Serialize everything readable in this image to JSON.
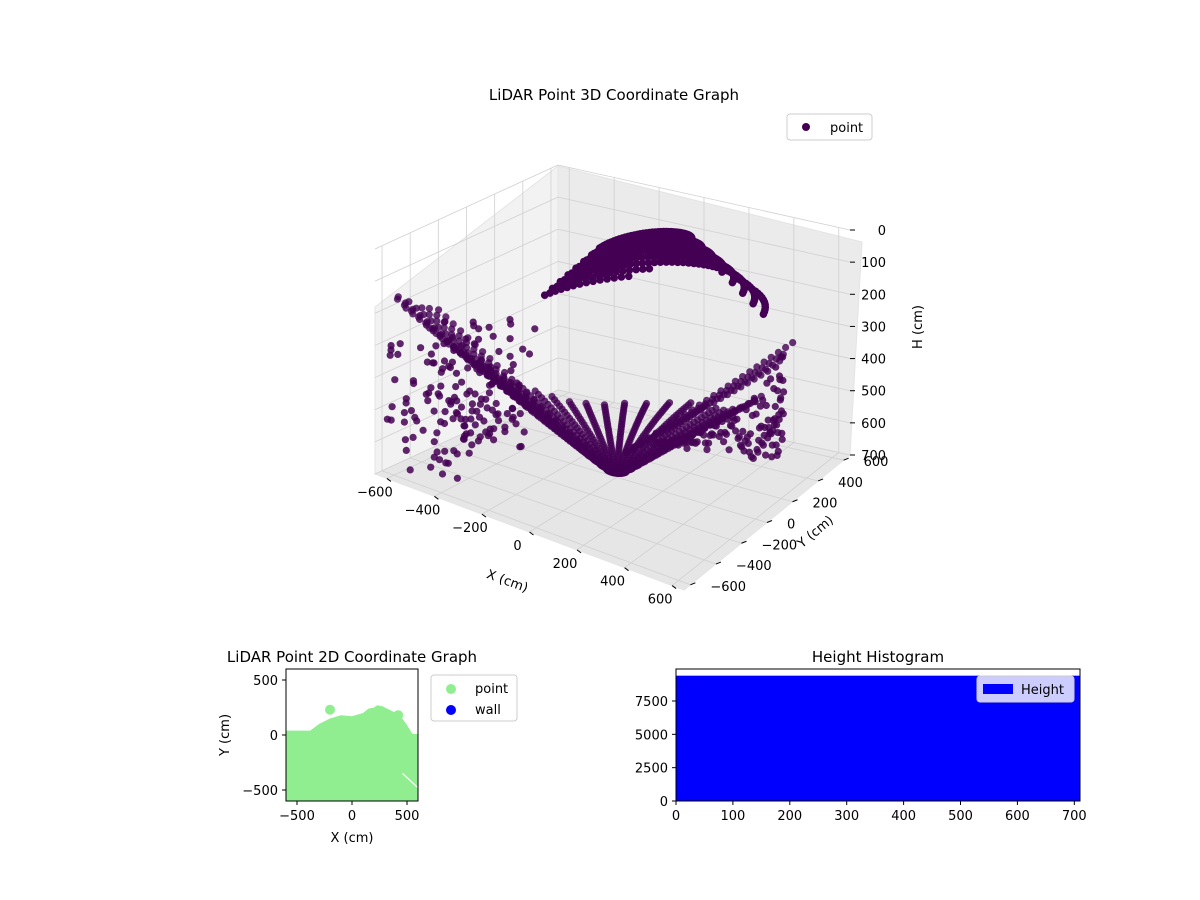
{
  "chart_data": [
    {
      "type": "scatter",
      "projection": "3d",
      "title": "LiDAR Point 3D Coordinate Graph",
      "xlabel": "X (cm)",
      "ylabel": "Y (cm)",
      "zlabel": "H (cm)",
      "xlim": [
        -650,
        650
      ],
      "ylim": [
        -650,
        650
      ],
      "zlim": [
        700,
        0
      ],
      "x_ticks": [
        -600,
        -400,
        -200,
        0,
        200,
        400,
        600
      ],
      "x_tick_labels": [
        "−600",
        "−400",
        "−200",
        "0",
        "200",
        "400",
        "600"
      ],
      "y_ticks": [
        -600,
        -400,
        -200,
        0,
        200,
        400,
        600
      ],
      "y_tick_labels": [
        "−600",
        "−400",
        "−200",
        "0",
        "200",
        "400",
        "600"
      ],
      "z_ticks": [
        0,
        100,
        200,
        300,
        400,
        500,
        600,
        700
      ],
      "z_tick_labels": [
        "0",
        "100",
        "200",
        "300",
        "400",
        "500",
        "600",
        "700"
      ],
      "grid": true,
      "legend": {
        "placement": "upper-right",
        "entries": [
          "point"
        ]
      },
      "series": [
        {
          "name": "point",
          "color": "#440154",
          "description": "dense sweep of lidar points forming curved scan bands",
          "points": [
            [
              -600,
              0,
              640
            ],
            [
              -500,
              100,
              580
            ],
            [
              -400,
              200,
              500
            ],
            [
              -300,
              260,
              430
            ],
            [
              -200,
              200,
              380
            ],
            [
              0,
              0,
              330
            ],
            [
              200,
              -200,
              300
            ],
            [
              300,
              300,
              250
            ],
            [
              400,
              200,
              200
            ],
            [
              500,
              0,
              150
            ],
            [
              600,
              -200,
              80
            ],
            [
              600,
              200,
              100
            ],
            [
              200,
              600,
              0
            ],
            [
              0,
              550,
              10
            ],
            [
              -200,
              400,
              60
            ],
            [
              -500,
              -500,
              520
            ],
            [
              0,
              -600,
              560
            ],
            [
              300,
              -550,
              600
            ],
            [
              500,
              -400,
              650
            ],
            [
              -300,
              -300,
              480
            ]
          ]
        }
      ]
    },
    {
      "type": "scatter",
      "title": "LiDAR Point 2D Coordinate Graph",
      "xlabel": "X (cm)",
      "ylabel": "Y (cm)",
      "xlim": [
        -600,
        600
      ],
      "ylim": [
        -600,
        600
      ],
      "x_ticks": [
        -500,
        0,
        500
      ],
      "x_tick_labels": [
        "−500",
        "0",
        "500"
      ],
      "y_ticks": [
        -500,
        0,
        500
      ],
      "y_tick_labels": [
        "−500",
        "0",
        "500"
      ],
      "grid": false,
      "legend": {
        "placement": "outside-right",
        "entries": [
          "point",
          "wall"
        ]
      },
      "series": [
        {
          "name": "point",
          "color": "#90ee90",
          "region_outline": [
            [
              -600,
              40
            ],
            [
              -380,
              40
            ],
            [
              -300,
              100
            ],
            [
              -200,
              150
            ],
            [
              -100,
              180
            ],
            [
              0,
              170
            ],
            [
              100,
              200
            ],
            [
              150,
              240
            ],
            [
              200,
              250
            ],
            [
              230,
              270
            ],
            [
              280,
              260
            ],
            [
              340,
              230
            ],
            [
              400,
              200
            ],
            [
              450,
              160
            ],
            [
              500,
              90
            ],
            [
              550,
              10
            ],
            [
              600,
              10
            ],
            [
              600,
              -600
            ],
            [
              -600,
              -600
            ]
          ],
          "extra_points": [
            [
              -200,
              230
            ],
            [
              420,
              180
            ]
          ]
        },
        {
          "name": "wall",
          "color": "#0000ff",
          "points": []
        }
      ]
    },
    {
      "type": "bar",
      "title": "Height Histogram",
      "xlabel": "",
      "ylabel": "",
      "xlim": [
        0,
        710
      ],
      "ylim": [
        0,
        9900
      ],
      "x_ticks": [
        0,
        100,
        200,
        300,
        400,
        500,
        600,
        700
      ],
      "y_ticks": [
        0,
        2500,
        5000,
        7500
      ],
      "y_tick_labels": [
        "0",
        "2500",
        "5000",
        "7500"
      ],
      "grid": false,
      "legend": {
        "placement": "upper-right",
        "entries": [
          "Height"
        ]
      },
      "series": [
        {
          "name": "Height",
          "color": "#0000ff",
          "bins": [
            [
              0,
              710,
              9400
            ]
          ]
        }
      ]
    }
  ]
}
